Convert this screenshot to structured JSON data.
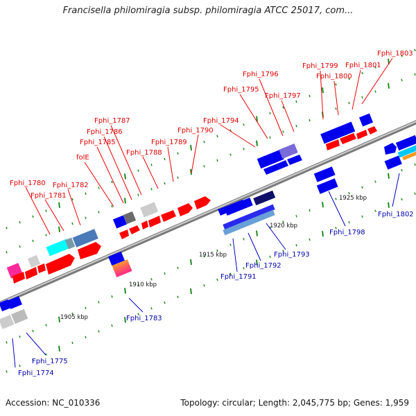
{
  "title": "Francisella philomiragia subsp. philomiragia ATCC 25017, com...",
  "accession_line": "Accession: NC_010336",
  "summary_line": "Topology: circular; Length: 2,045,775 bp; Genes: 1,959",
  "scale_labels": [
    "1905 kbp",
    "1910 kbp",
    "1915 kbp",
    "1920 kbp",
    "1925 kbp"
  ],
  "top_labels": [
    "Fphi_1780",
    "Fphi_1781",
    "Fphi_1782",
    "folE",
    "Fphi_1785",
    "Fphi_1786",
    "Fphi_1787",
    "Fphi_1788",
    "Fphi_1789",
    "Fphi_1790",
    "Fphi_1794",
    "Fphi_1795",
    "Fphi_1796",
    "Fphi_1797",
    "Fphi_1799",
    "Fphi_1800",
    "Fphi_1801",
    "Fphi_1803"
  ],
  "bottom_labels": [
    "Fphi_1774",
    "Fphi_1775",
    "Fphi_1783",
    "Fphi_1791",
    "Fphi_1792",
    "Fphi_1793",
    "Fphi_1798",
    "Fphi_1802"
  ],
  "colors": {
    "top_label": "#dd0000",
    "bottom_label": "#0000aa",
    "backbone": "#9a9a9a",
    "tick": "#1e7a1e",
    "gene_red": "#ff0000",
    "gene_blue": "#0000ee"
  }
}
